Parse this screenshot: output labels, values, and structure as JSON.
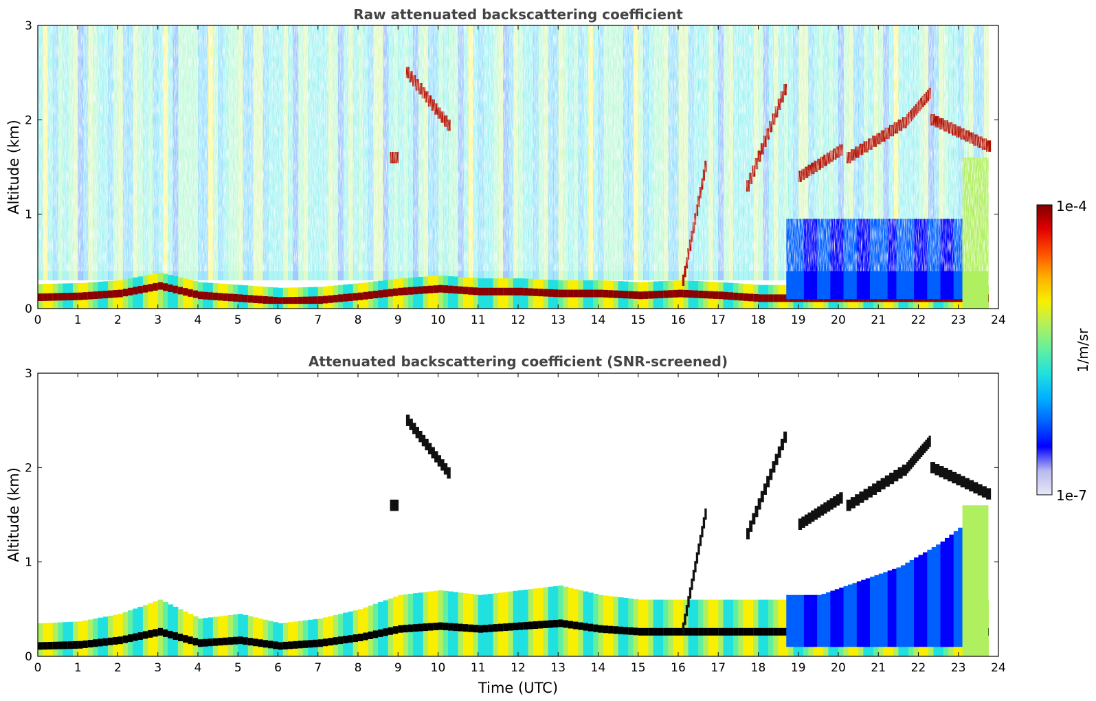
{
  "chart_data": [
    {
      "type": "heatmap",
      "title": "Raw attenuated backscattering coefficient",
      "xlabel": "",
      "ylabel": "Altitude (km)",
      "xlim": [
        0,
        24
      ],
      "ylim": [
        0,
        3
      ],
      "x_ticks": [
        "0",
        "1",
        "2",
        "3",
        "4",
        "5",
        "6",
        "7",
        "8",
        "9",
        "10",
        "11",
        "12",
        "13",
        "14",
        "15",
        "16",
        "17",
        "18",
        "19",
        "20",
        "21",
        "22",
        "23",
        "24"
      ],
      "y_ticks": [
        "0",
        "1",
        "2",
        "3"
      ],
      "screening": "none",
      "features": {
        "boundary_layer_top_km": [
          [
            0,
            0.16
          ],
          [
            1,
            0.17
          ],
          [
            2,
            0.2
          ],
          [
            3,
            0.28
          ],
          [
            4,
            0.18
          ],
          [
            5,
            0.15
          ],
          [
            6,
            0.12
          ],
          [
            7,
            0.13
          ],
          [
            8,
            0.17
          ],
          [
            9,
            0.22
          ],
          [
            10,
            0.25
          ],
          [
            11,
            0.22
          ],
          [
            12,
            0.22
          ],
          [
            13,
            0.2
          ],
          [
            14,
            0.2
          ],
          [
            15,
            0.18
          ],
          [
            16,
            0.2
          ],
          [
            17,
            0.18
          ],
          [
            18,
            0.15
          ]
        ],
        "cloud_layers": [
          {
            "x_start": 9.2,
            "x_end": 10.3,
            "alt_start_km": 2.5,
            "alt_end_km": 1.9,
            "level": "high"
          },
          {
            "x_start": 8.8,
            "x_end": 9.0,
            "alt_start_km": 1.6,
            "alt_end_km": 1.6,
            "level": "high"
          },
          {
            "x_start": 16.1,
            "x_end": 16.7,
            "alt_start_km": 0.3,
            "alt_end_km": 1.6,
            "level": "high"
          },
          {
            "x_start": 17.7,
            "x_end": 18.7,
            "alt_start_km": 1.3,
            "alt_end_km": 2.4,
            "level": "high"
          },
          {
            "x_start": 19.0,
            "x_end": 20.1,
            "alt_start_km": 1.4,
            "alt_end_km": 1.7,
            "level": "high"
          },
          {
            "x_start": 20.2,
            "x_end": 21.7,
            "alt_start_km": 1.6,
            "alt_end_km": 2.0,
            "level": "high"
          },
          {
            "x_start": 21.7,
            "x_end": 22.3,
            "alt_start_km": 2.0,
            "alt_end_km": 2.3,
            "level": "high"
          },
          {
            "x_start": 22.3,
            "x_end": 23.8,
            "alt_start_km": 2.0,
            "alt_end_km": 1.7,
            "level": "high"
          }
        ],
        "clear_air_region": {
          "x_start": 18.7,
          "x_end": 23.1,
          "alt_start_km": 0.2,
          "alt_end_km": 1.0,
          "level": "low"
        }
      }
    },
    {
      "type": "heatmap",
      "title": "Attenuated backscattering coefficient (SNR-screened)",
      "xlabel": "Time (UTC)",
      "ylabel": "Altitude (km)",
      "xlim": [
        0,
        24
      ],
      "ylim": [
        0,
        3
      ],
      "x_ticks": [
        "0",
        "1",
        "2",
        "3",
        "4",
        "5",
        "6",
        "7",
        "8",
        "9",
        "10",
        "11",
        "12",
        "13",
        "14",
        "15",
        "16",
        "17",
        "18",
        "19",
        "20",
        "21",
        "22",
        "23",
        "24"
      ],
      "y_ticks": [
        "0",
        "1",
        "2",
        "3"
      ],
      "screening": "SNR",
      "features": {
        "aerosol_layer_top_km": [
          [
            0,
            0.25
          ],
          [
            1,
            0.27
          ],
          [
            2,
            0.35
          ],
          [
            3,
            0.5
          ],
          [
            4,
            0.3
          ],
          [
            5,
            0.35
          ],
          [
            6,
            0.25
          ],
          [
            7,
            0.3
          ],
          [
            8,
            0.4
          ],
          [
            9,
            0.55
          ],
          [
            10,
            0.6
          ],
          [
            11,
            0.55
          ],
          [
            12,
            0.6
          ],
          [
            13,
            0.65
          ],
          [
            14,
            0.55
          ],
          [
            15,
            0.5
          ],
          [
            16,
            0.5
          ]
        ],
        "low_signal_region_top_km": [
          [
            18.7,
            0.65
          ],
          [
            19.5,
            0.65
          ],
          [
            20.5,
            0.8
          ],
          [
            21.5,
            0.95
          ],
          [
            22.5,
            1.2
          ],
          [
            23.1,
            1.4
          ]
        ]
      }
    }
  ],
  "colorbar": {
    "label": "1/m/sr",
    "max_label": "1e-4",
    "min_label": "1e-7",
    "colormap": [
      "#e8e8f8",
      "#b8b8f0",
      "#0000ff",
      "#0060ff",
      "#00b0ff",
      "#20e0e0",
      "#60f0a0",
      "#b0f060",
      "#f8f000",
      "#ffb000",
      "#ff5000",
      "#e00000",
      "#800000"
    ]
  }
}
